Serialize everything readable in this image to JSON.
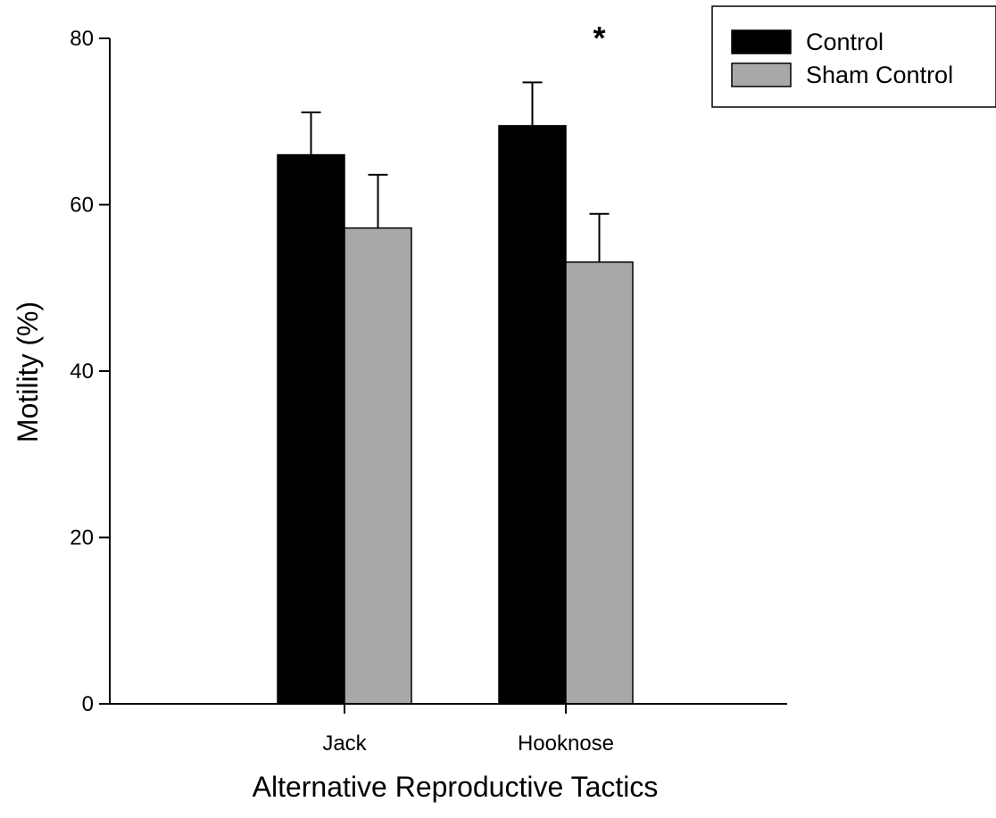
{
  "chart_data": {
    "type": "bar",
    "title": "",
    "xlabel": "Alternative Reproductive Tactics",
    "ylabel": "Motility (%)",
    "ylim": [
      0,
      80
    ],
    "yticks": [
      0,
      20,
      40,
      60,
      80
    ],
    "categories": [
      "Jack",
      "Hooknose"
    ],
    "series": [
      {
        "name": "Control",
        "color": "#000000",
        "values": [
          66.0,
          69.5
        ],
        "error_upper": [
          5.1,
          5.2
        ]
      },
      {
        "name": "Sham Control",
        "color": "#a8a8a8",
        "values": [
          57.2,
          53.1
        ],
        "error_upper": [
          6.4,
          5.8
        ]
      }
    ],
    "annotations": [
      {
        "text": "*",
        "category": "Hooknose"
      }
    ],
    "legend_position": "top-right",
    "grid": false
  }
}
